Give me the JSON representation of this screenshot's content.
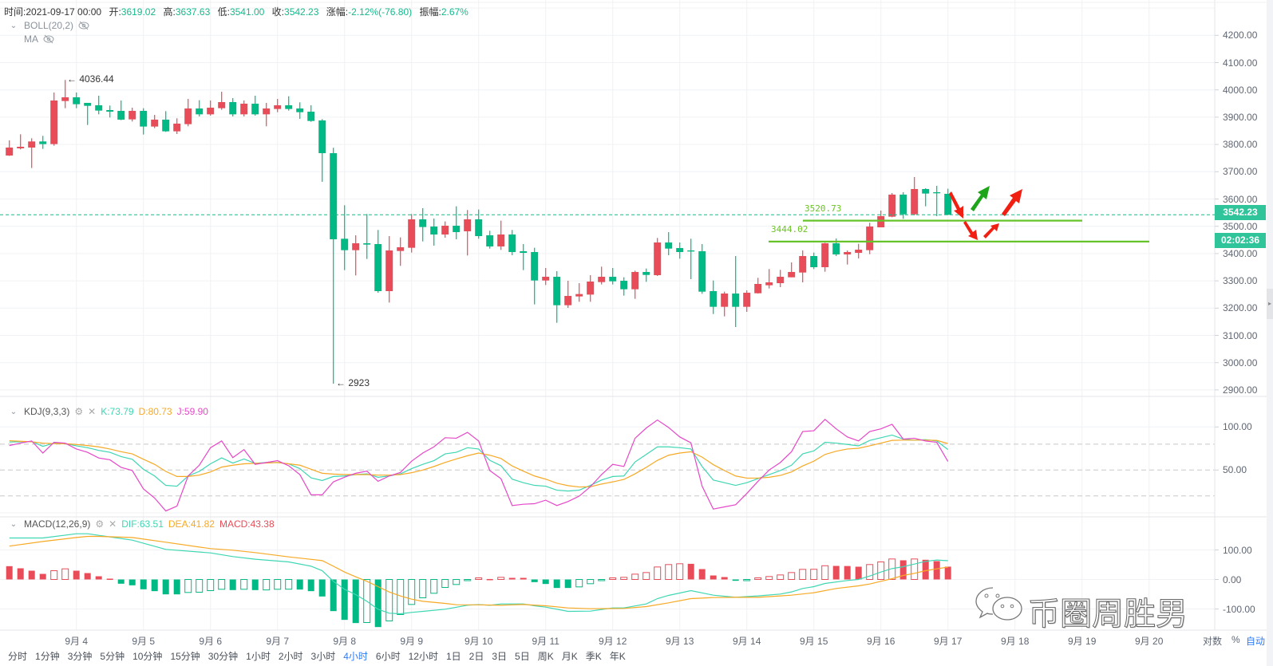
{
  "header": {
    "time_label": "时间:",
    "time": "2021-09-17 00:00",
    "open_label": "开:",
    "open": "3619.02",
    "high_label": "高:",
    "high": "3637.63",
    "low_label": "低:",
    "low": "3541.00",
    "close_label": "收:",
    "close": "3542.23",
    "change_label": "涨幅:",
    "change": "-2.12%(-76.80)",
    "amplitude_label": "振幅:",
    "amplitude": "2.67%"
  },
  "indicators": {
    "boll": "BOLL(20,2)",
    "ma": "MA",
    "kdj": {
      "name": "KDJ(9,3,3)",
      "k": "K:73.79",
      "d": "D:80.73",
      "j": "J:59.90"
    },
    "macd": {
      "name": "MACD(12,26,9)",
      "dif": "DIF:63.51",
      "dea": "DEA:41.82",
      "macd": "MACD:43.38"
    }
  },
  "colors": {
    "up": "#e84c58",
    "down": "#00b984",
    "k": "#3fd6b4",
    "d": "#f7a925",
    "j": "#e548c8",
    "price_line": "#16b98a",
    "support": "#66c42a",
    "accent": "#2f7cf6"
  },
  "price_axis": [
    "4200.00",
    "4100.00",
    "4000.00",
    "3900.00",
    "3800.00",
    "3700.00",
    "3600.00",
    "3500.00",
    "3400.00",
    "3300.00",
    "3200.00",
    "3100.00",
    "3000.00",
    "2900.00"
  ],
  "kdj_axis": [
    "100.00",
    "50.00"
  ],
  "macd_axis": [
    "100.00",
    "0.00",
    "-100.00"
  ],
  "current_price": "3542.23",
  "countdown": "02:02:36",
  "annotations": {
    "high_marker": "← 4036.44",
    "low_marker": "← 2923",
    "level1": "3520.73",
    "level2": "3444.02"
  },
  "dates": [
    "9月 4",
    "9月 5",
    "9月 6",
    "9月 7",
    "9月 8",
    "9月 9",
    "9月 10",
    "9月 11",
    "9月 12",
    "9月 13",
    "9月 14",
    "9月 15",
    "9月 16",
    "9月 17",
    "9月 18",
    "9月 19",
    "9月 20"
  ],
  "scale_options": {
    "log": "对数",
    "percent": "%",
    "auto": "自动"
  },
  "timeframes": [
    "分时",
    "1分钟",
    "3分钟",
    "5分钟",
    "10分钟",
    "15分钟",
    "30分钟",
    "1小时",
    "2小时",
    "3小时",
    "4小时",
    "6小时",
    "12小时",
    "1日",
    "2日",
    "3日",
    "5日",
    "周K",
    "月K",
    "季K",
    "年K"
  ],
  "active_timeframe": "4小时",
  "watermark": "币圈周胜男",
  "chart_data": {
    "type": "candlestick",
    "interval": "4h",
    "ohlc": [
      [
        3759.4,
        3814.9,
        3758,
        3788.6
      ],
      [
        3785.7,
        3837.3,
        3781.8,
        3791.5
      ],
      [
        3788.6,
        3822.7,
        3713.6,
        3811
      ],
      [
        3811,
        3831.5,
        3783.7,
        3801.3
      ],
      [
        3801.3,
        3990.4,
        3795.4,
        3961.1
      ],
      [
        3959.2,
        4036.44,
        3932.9,
        3972.8
      ],
      [
        3972.8,
        3990.4,
        3932.9,
        3947.5
      ],
      [
        3952.4,
        3952.4,
        3871.5,
        3941.6
      ],
      [
        3943.6,
        3978.7,
        3910.4,
        3924.1
      ],
      [
        3926,
        3942.6,
        3898.8,
        3920.2
      ],
      [
        3923.1,
        3961.1,
        3889,
        3890.9
      ],
      [
        3891.9,
        3934.8,
        3884.1,
        3923.1
      ],
      [
        3923.1,
        3932.9,
        3836.4,
        3865.6
      ],
      [
        3865.6,
        3908.5,
        3859.8,
        3891
      ],
      [
        3891,
        3922.1,
        3846.1,
        3848.1
      ],
      [
        3848.1,
        3895.8,
        3838.3,
        3876.3
      ],
      [
        3874.4,
        3967,
        3866.6,
        3931.9
      ],
      [
        3931.9,
        3962.1,
        3902.6,
        3910.4
      ],
      [
        3910.4,
        3961.1,
        3905.6,
        3934.8
      ],
      [
        3932.9,
        3993.3,
        3927,
        3955.3
      ],
      [
        3955.3,
        3969.9,
        3902.6,
        3910.4
      ],
      [
        3910.4,
        3961.1,
        3902.6,
        3949.4
      ],
      [
        3949.4,
        3978.7,
        3905.6,
        3910.4
      ],
      [
        3910.4,
        3952.4,
        3866.6,
        3931.9
      ],
      [
        3930,
        3967,
        3918.2,
        3943.6
      ],
      [
        3943.6,
        3976.7,
        3924.1,
        3930
      ],
      [
        3931.9,
        3954.3,
        3893.9,
        3918.2
      ],
      [
        3920.2,
        3943.6,
        3883.1,
        3886.1
      ],
      [
        3888,
        3893,
        3663,
        3768
      ],
      [
        3768,
        3788,
        2923,
        3452.3
      ],
      [
        3454.3,
        3577.1,
        3339.3,
        3412.4
      ],
      [
        3412.4,
        3467,
        3319.8,
        3437.7
      ],
      [
        3437.7,
        3545,
        3380.2,
        3432.9
      ],
      [
        3434.8,
        3486.5,
        3256.4,
        3262.3
      ],
      [
        3262.3,
        3464,
        3220.4,
        3411.4
      ],
      [
        3409.5,
        3459.2,
        3354.9,
        3423.1
      ],
      [
        3421.2,
        3545,
        3403.6,
        3525.5
      ],
      [
        3525.5,
        3566.4,
        3444.5,
        3497.2
      ],
      [
        3499.1,
        3528.4,
        3429,
        3469.9
      ],
      [
        3469.9,
        3517.7,
        3458.2,
        3502.1
      ],
      [
        3502.1,
        3573.2,
        3452.3,
        3478.7
      ],
      [
        3481.6,
        3559.6,
        3392.9,
        3525.5
      ],
      [
        3525.5,
        3561.5,
        3454.3,
        3464
      ],
      [
        3467,
        3483.5,
        3418.2,
        3426.1
      ],
      [
        3426.1,
        3520.6,
        3413.4,
        3469.9
      ],
      [
        3469.9,
        3486.5,
        3393.9,
        3405.6
      ],
      [
        3408.5,
        3434.8,
        3339.3,
        3402.6
      ],
      [
        3405.6,
        3421.2,
        3213.6,
        3301.3
      ],
      [
        3301.3,
        3347.1,
        3284.7,
        3314.9
      ],
      [
        3314.9,
        3335.4,
        3146.3,
        3210.6
      ],
      [
        3210.6,
        3300.3,
        3200.9,
        3244.7
      ],
      [
        3242.8,
        3291.5,
        3223.3,
        3251.6
      ],
      [
        3249.6,
        3320.8,
        3223.3,
        3297.4
      ],
      [
        3295.4,
        3352,
        3286.7,
        3314.9
      ],
      [
        3314.9,
        3347.1,
        3286.7,
        3298.3
      ],
      [
        3300.3,
        3313,
        3245.7,
        3269.1
      ],
      [
        3269.1,
        3337.3,
        3234,
        3332.5
      ],
      [
        3332.5,
        3345.1,
        3296.4,
        3321.7
      ],
      [
        3320.8,
        3457.2,
        3317.8,
        3440.6
      ],
      [
        3440.6,
        3478.6,
        3393.9,
        3418.2
      ],
      [
        3420.2,
        3440.6,
        3381.2,
        3405.6
      ],
      [
        3411.4,
        3454.3,
        3306.1,
        3407.5
      ],
      [
        3408.5,
        3434.8,
        3252.5,
        3260.3
      ],
      [
        3262.3,
        3301.3,
        3178.4,
        3204.8
      ],
      [
        3204.8,
        3260.3,
        3169.7,
        3253.5
      ],
      [
        3253.5,
        3390.9,
        3130.7,
        3204.8
      ],
      [
        3204.8,
        3265.2,
        3186.2,
        3256.4
      ],
      [
        3254.5,
        3311,
        3253.5,
        3288.6
      ],
      [
        3283.7,
        3343.2,
        3272,
        3294.4
      ],
      [
        3291.5,
        3340.2,
        3276.9,
        3314.9
      ],
      [
        3313,
        3367.5,
        3313,
        3332.5
      ],
      [
        3330.5,
        3411.4,
        3294.4,
        3390.9
      ],
      [
        3390.9,
        3403.6,
        3343.2,
        3350
      ],
      [
        3350,
        3439.6,
        3333.4,
        3437.7
      ],
      [
        3437.7,
        3455.3,
        3390.9,
        3396.8
      ],
      [
        3396.8,
        3411.4,
        3359.7,
        3405.6
      ],
      [
        3402.6,
        3435.8,
        3382.2,
        3414.3
      ],
      [
        3412.4,
        3512.8,
        3397.8,
        3499.1
      ],
      [
        3496.2,
        3557.6,
        3496.2,
        3537.1
      ],
      [
        3535.2,
        3621.9,
        3533.2,
        3616.1
      ],
      [
        3616.1,
        3624.9,
        3527.4,
        3544
      ],
      [
        3544,
        3680.4,
        3540.1,
        3636.6
      ],
      [
        3636.6,
        3639.5,
        3573.2,
        3620
      ],
      [
        3624.9,
        3648.2,
        3537.1,
        3621
      ],
      [
        3619.02,
        3637.63,
        3541,
        3542.23
      ]
    ],
    "price_range": [
      2900,
      4200
    ],
    "levels": [
      3520.73,
      3444.02
    ],
    "kdj": {
      "range": [
        0,
        100
      ],
      "k": [
        82.5,
        82.8,
        83.1,
        77.5,
        81.25,
        80.6,
        78.1,
        75.9,
        72.8,
        70.6,
        65.6,
        62.5,
        50.9,
        43.1,
        32.2,
        31.25,
        43.1,
        48.4,
        57.2,
        64.1,
        58.1,
        62.8,
        57.8,
        58.75,
        58.75,
        57.2,
        51.6,
        40.9,
        37.8,
        42.5,
        43.1,
        44.7,
        45.6,
        41.6,
        43.1,
        45.6,
        51.6,
        56.6,
        60.9,
        68.75,
        70.6,
        75.9,
        74.4,
        61.25,
        55,
        39.4,
        35.3,
        32.2,
        31.25,
        26.6,
        25.6,
        26.6,
        32.2,
        38.4,
        42.5,
        43.1,
        59.4,
        68.1,
        76.9,
        76.9,
        75.9,
        74.4,
        54.1,
        38.4,
        35.3,
        32.2,
        35.3,
        40,
        44.7,
        49.4,
        55.6,
        68.75,
        72.2,
        82.2,
        81.25,
        79.7,
        78.1,
        84.4,
        87.5,
        90.6,
        85.9,
        84.7,
        85.3,
        83.75,
        73.79
      ],
      "d": [
        84,
        83.4,
        82.8,
        81.25,
        80.6,
        80.6,
        79.7,
        78.4,
        76.9,
        74.4,
        71.25,
        68.75,
        62.5,
        56.6,
        48.4,
        42.5,
        42.5,
        44.1,
        47.8,
        53.4,
        55.6,
        57.2,
        57.8,
        58.1,
        58.75,
        57.2,
        55.6,
        50.9,
        46.25,
        45.3,
        44.7,
        44.7,
        44.7,
        44.1,
        44.1,
        44.7,
        46.9,
        50,
        54.1,
        58.75,
        62.8,
        66.6,
        69.7,
        67.2,
        63.4,
        54.7,
        48.75,
        43.1,
        39.4,
        34.7,
        31.9,
        30.3,
        30.6,
        33.75,
        36.25,
        39.1,
        45.6,
        53.1,
        61.25,
        67.2,
        69.7,
        71.25,
        65,
        56.25,
        49.4,
        43.1,
        40.6,
        40.6,
        41.6,
        43.75,
        47.8,
        54.7,
        60.3,
        68.1,
        71.9,
        74.4,
        75.3,
        78.1,
        81.25,
        84.4,
        84.7,
        84.7,
        84.7,
        84.4,
        80.73
      ],
      "j": [
        78.4,
        81.25,
        83.75,
        69.7,
        82.2,
        81.25,
        74.4,
        70.6,
        64,
        61.9,
        53.1,
        49.4,
        28.1,
        17.5,
        2.5,
        8.1,
        43.1,
        55.6,
        75.9,
        83.75,
        64.4,
        73.75,
        56.6,
        58.75,
        60.9,
        55,
        44.7,
        21.25,
        21.25,
        36.25,
        41.6,
        46.25,
        48.75,
        36.9,
        43.1,
        47.2,
        60.3,
        69.7,
        76.9,
        87.5,
        86.9,
        93.75,
        83.75,
        49.4,
        40,
        8.75,
        10.3,
        10.9,
        15,
        8.75,
        13.4,
        19.7,
        30.6,
        44.7,
        56.6,
        54.1,
        86.9,
        98.75,
        108.1,
        99.4,
        88.4,
        81.6,
        31.25,
        4.7,
        7.2,
        9.7,
        22.8,
        36.9,
        50,
        58.75,
        71.25,
        94.7,
        95.6,
        108.75,
        97.8,
        88.4,
        83.75,
        94.7,
        97.8,
        103.1,
        85.9,
        86.9,
        83.75,
        82.2,
        59.9
      ],
      "dashed_levels": [
        80,
        50,
        20
      ]
    },
    "macd": {
      "hist": [
        45,
        37.8,
        29.7,
        18.9,
        29.7,
        36,
        29.7,
        21.6,
        10.8,
        2.7,
        -14.4,
        -19.8,
        -33.3,
        -39.6,
        -50.5,
        -50.5,
        -44.1,
        -43.2,
        -37.8,
        -33.3,
        -36,
        -33.3,
        -36,
        -35.5,
        -33.3,
        -33,
        -34.2,
        -39.6,
        -57.7,
        -107.2,
        -136.9,
        -147.7,
        -146,
        -161.3,
        -140.5,
        -118.9,
        -84.7,
        -62.2,
        -46.8,
        -27,
        -17.1,
        -2.7,
        5.4,
        1.5,
        7.2,
        5.4,
        5.4,
        -9,
        -15.3,
        -28.8,
        -28.8,
        -25.2,
        -14.4,
        -3.6,
        5.4,
        7.2,
        18,
        23.4,
        42.3,
        50.5,
        53.2,
        53,
        35.1,
        13.5,
        8.1,
        -4.5,
        -1.8,
        5.4,
        9.9,
        15.3,
        23.4,
        34.2,
        34.5,
        46.5,
        45.9,
        45.5,
        43.2,
        50.5,
        59.5,
        69.4,
        64.9,
        69.4,
        66.7,
        62.2,
        43.38
      ],
      "dif": [
        [
          0,
          140.5
        ],
        [
          3,
          140.5
        ],
        [
          6,
          154.9
        ],
        [
          7,
          154.9
        ],
        [
          8,
          149.5
        ],
        [
          11,
          133.3
        ],
        [
          14,
          101.8
        ],
        [
          18,
          90
        ],
        [
          20,
          77.5
        ],
        [
          22,
          68.5
        ],
        [
          25,
          59.5
        ],
        [
          27,
          45
        ],
        [
          28,
          29.7
        ],
        [
          29,
          -6.3
        ],
        [
          30,
          -33.3
        ],
        [
          31,
          -51.4
        ],
        [
          32,
          -73.9
        ],
        [
          33,
          -100.9
        ],
        [
          34,
          -114.4
        ],
        [
          35,
          -116.2
        ],
        [
          36,
          -111.7
        ],
        [
          37,
          -108.1
        ],
        [
          39,
          -100.9
        ],
        [
          41,
          -87.4
        ],
        [
          42,
          -85
        ],
        [
          43,
          -87.4
        ],
        [
          44,
          -82.9
        ],
        [
          46,
          -82.9
        ],
        [
          47,
          -89.2
        ],
        [
          48,
          -93.7
        ],
        [
          50,
          -108.1
        ],
        [
          52,
          -107.2
        ],
        [
          54,
          -96.4
        ],
        [
          55,
          -96.4
        ],
        [
          57,
          -82.9
        ],
        [
          58,
          -64.9
        ],
        [
          59,
          -54
        ],
        [
          61,
          -37.8
        ],
        [
          63,
          -53.2
        ],
        [
          65,
          -60.4
        ],
        [
          67,
          -55.8
        ],
        [
          69,
          -49.5
        ],
        [
          70,
          -42.3
        ],
        [
          71,
          -30.6
        ],
        [
          72,
          -24.3
        ],
        [
          73,
          -13.5
        ],
        [
          75,
          -3.6
        ],
        [
          76,
          0
        ],
        [
          77,
          11.7
        ],
        [
          78,
          25.2
        ],
        [
          79,
          36.9
        ],
        [
          80,
          43.2
        ],
        [
          81,
          52.3
        ],
        [
          82,
          61.3
        ],
        [
          83,
          65.8
        ],
        [
          84,
          63.51
        ]
      ],
      "dea": [
        [
          0,
          113
        ],
        [
          3,
          128.8
        ],
        [
          6,
          142.3
        ],
        [
          7,
          146
        ],
        [
          8,
          146
        ],
        [
          11,
          142.3
        ],
        [
          14,
          126.1
        ],
        [
          18,
          104.5
        ],
        [
          20,
          99.1
        ],
        [
          22,
          91
        ],
        [
          25,
          76.6
        ],
        [
          28,
          63.9
        ],
        [
          29,
          45
        ],
        [
          30,
          25.2
        ],
        [
          31,
          9
        ],
        [
          32,
          -6.3
        ],
        [
          33,
          -24.3
        ],
        [
          34,
          -42.3
        ],
        [
          35,
          -55.8
        ],
        [
          36,
          -66.7
        ],
        [
          37,
          -73.9
        ],
        [
          39,
          -81.1
        ],
        [
          40,
          -85.6
        ],
        [
          42,
          -86
        ],
        [
          44,
          -87.4
        ],
        [
          46,
          -84.7
        ],
        [
          48,
          -89.2
        ],
        [
          50,
          -96.4
        ],
        [
          52,
          -99.1
        ],
        [
          55,
          -98.2
        ],
        [
          57,
          -91.9
        ],
        [
          59,
          -79.3
        ],
        [
          61,
          -64.9
        ],
        [
          63,
          -61.3
        ],
        [
          65,
          -60.4
        ],
        [
          67,
          -60.4
        ],
        [
          69,
          -55.8
        ],
        [
          70,
          -53.2
        ],
        [
          72,
          -45
        ],
        [
          74,
          -30.6
        ],
        [
          76,
          -21.6
        ],
        [
          77,
          -15.3
        ],
        [
          78,
          -6.3
        ],
        [
          79,
          2.7
        ],
        [
          80,
          13.5
        ],
        [
          81,
          20.7
        ],
        [
          82,
          29.7
        ],
        [
          83,
          36
        ],
        [
          84,
          41.82
        ]
      ]
    }
  }
}
